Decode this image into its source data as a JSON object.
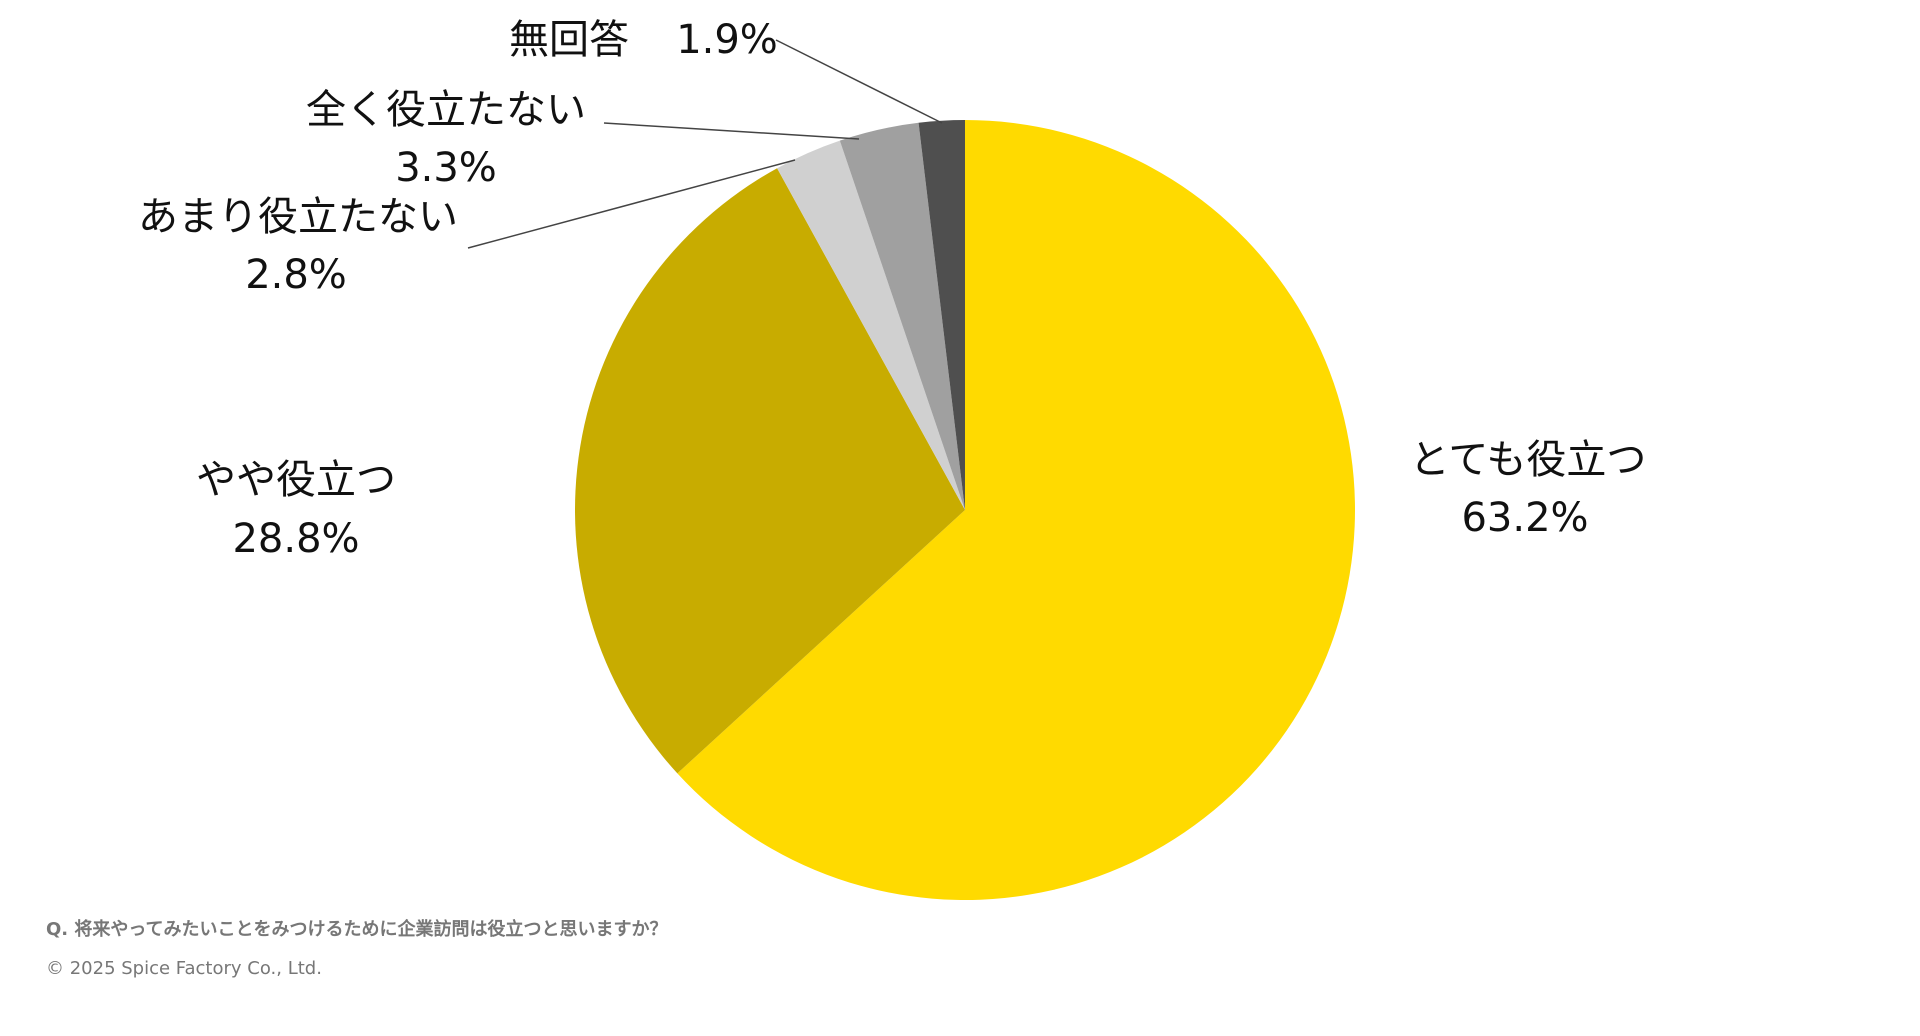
{
  "chart_data": {
    "type": "pie",
    "categories": [
      "とても役立つ",
      "やや役立つ",
      "あまり役立たない",
      "全く役立たない",
      "無回答"
    ],
    "values": [
      63.2,
      28.8,
      2.8,
      3.3,
      1.9
    ],
    "value_labels": [
      "63.2%",
      "28.8%",
      "2.8%",
      "3.3%",
      "1.9%"
    ],
    "colors": [
      "#ffda00",
      "#c8ac00",
      "#d0d0d0",
      "#a0a0a0",
      "#4f4f4f"
    ]
  },
  "footer": {
    "question": "Q. 将来やってみたいことをみつけるために企業訪問は役立つと思いますか？",
    "copyright": "© 2025 Spice Factory Co., Ltd."
  }
}
